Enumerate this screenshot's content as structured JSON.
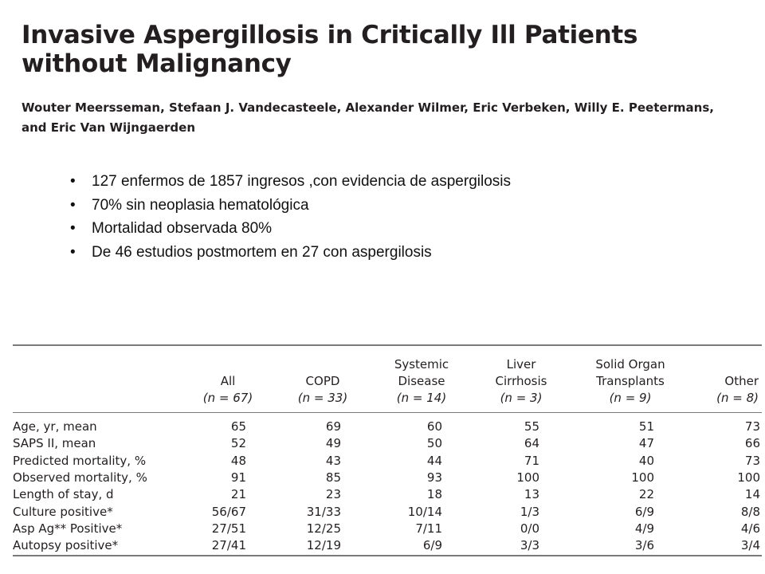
{
  "paper": {
    "title_line1": "Invasive Aspergillosis in Critically Ill Patients",
    "title_line2": "without Malignancy",
    "authors_line1": "Wouter Meersseman, Stefaan J. Vandecasteele, Alexander Wilmer, Eric Verbeken, Willy E. Peetermans,",
    "authors_line2": "and Eric Van Wijngaerden"
  },
  "bullets": [
    "127 enfermos de 1857 ingresos ,con evidencia de aspergilosis",
    "70% sin neoplasia hematológica",
    "Mortalidad observada 80%",
    "De 46 estudios postmortem en 27 con aspergilosis"
  ],
  "bullet_glyph": "•",
  "table": {
    "columns": [
      {
        "line1": "",
        "line2": "All",
        "n": "(n = 67)"
      },
      {
        "line1": "",
        "line2": "COPD",
        "n": "(n = 33)"
      },
      {
        "line1": "Systemic",
        "line2": "Disease",
        "n": "(n = 14)"
      },
      {
        "line1": "Liver",
        "line2": "Cirrhosis",
        "n": "(n = 3)"
      },
      {
        "line1": "Solid Organ",
        "line2": "Transplants",
        "n": "(n = 9)"
      },
      {
        "line1": "",
        "line2": "Other",
        "n": "(n = 8)"
      }
    ],
    "rows": [
      {
        "label": "Age, yr, mean",
        "values": [
          "65",
          "69",
          "60",
          "55",
          "51",
          "73"
        ]
      },
      {
        "label": "SAPS II, mean",
        "values": [
          "52",
          "49",
          "50",
          "64",
          "47",
          "66"
        ]
      },
      {
        "label": "Predicted mortality, %",
        "values": [
          "48",
          "43",
          "44",
          "71",
          "40",
          "73"
        ]
      },
      {
        "label": "Observed mortality, %",
        "values": [
          "91",
          "85",
          "93",
          "100",
          "100",
          "100"
        ]
      },
      {
        "label": "Length of stay, d",
        "values": [
          "21",
          "23",
          "18",
          "13",
          "22",
          "14"
        ]
      },
      {
        "label": "Culture positive*",
        "values": [
          "56/67",
          "31/33",
          "10/14",
          "1/3",
          "6/9",
          "8/8"
        ]
      },
      {
        "label": "Asp Ag** Positive*",
        "values": [
          "27/51",
          "12/25",
          "7/11",
          "0/0",
          "4/9",
          "4/6"
        ]
      },
      {
        "label": "Autopsy positive*",
        "values": [
          "27/41",
          "12/19",
          "6/9",
          "3/3",
          "3/6",
          "3/4"
        ]
      }
    ]
  }
}
